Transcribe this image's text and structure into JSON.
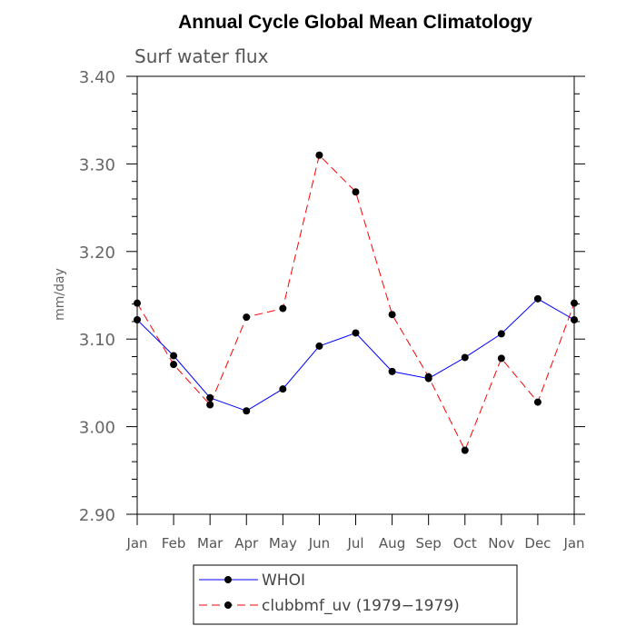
{
  "chart_data": {
    "type": "line",
    "title": "Annual Cycle Global Mean Climatology",
    "subtitle": "Surf water flux",
    "xlabel": "",
    "ylabel": "mm/day",
    "categories": [
      "Jan",
      "Feb",
      "Mar",
      "Apr",
      "May",
      "Jun",
      "Jul",
      "Aug",
      "Sep",
      "Oct",
      "Nov",
      "Dec",
      "Jan"
    ],
    "ylim": [
      2.9,
      3.4
    ],
    "yticks": [
      "2.90",
      "3.00",
      "3.10",
      "3.20",
      "3.30",
      "3.40"
    ],
    "grid": false,
    "legend_position": "bottom",
    "series": [
      {
        "name": "WHOI",
        "color": "#0000ff",
        "style": "solid",
        "values": [
          3.122,
          3.081,
          3.033,
          3.018,
          3.043,
          3.092,
          3.107,
          3.063,
          3.055,
          3.079,
          3.106,
          3.146,
          3.122
        ]
      },
      {
        "name": "clubbmf_uv (1979−1979)",
        "color": "#ff0000",
        "style": "dashed",
        "values": [
          3.141,
          3.071,
          3.025,
          3.125,
          3.135,
          3.31,
          3.268,
          3.128,
          3.057,
          2.973,
          3.078,
          3.028,
          3.141
        ]
      }
    ]
  }
}
